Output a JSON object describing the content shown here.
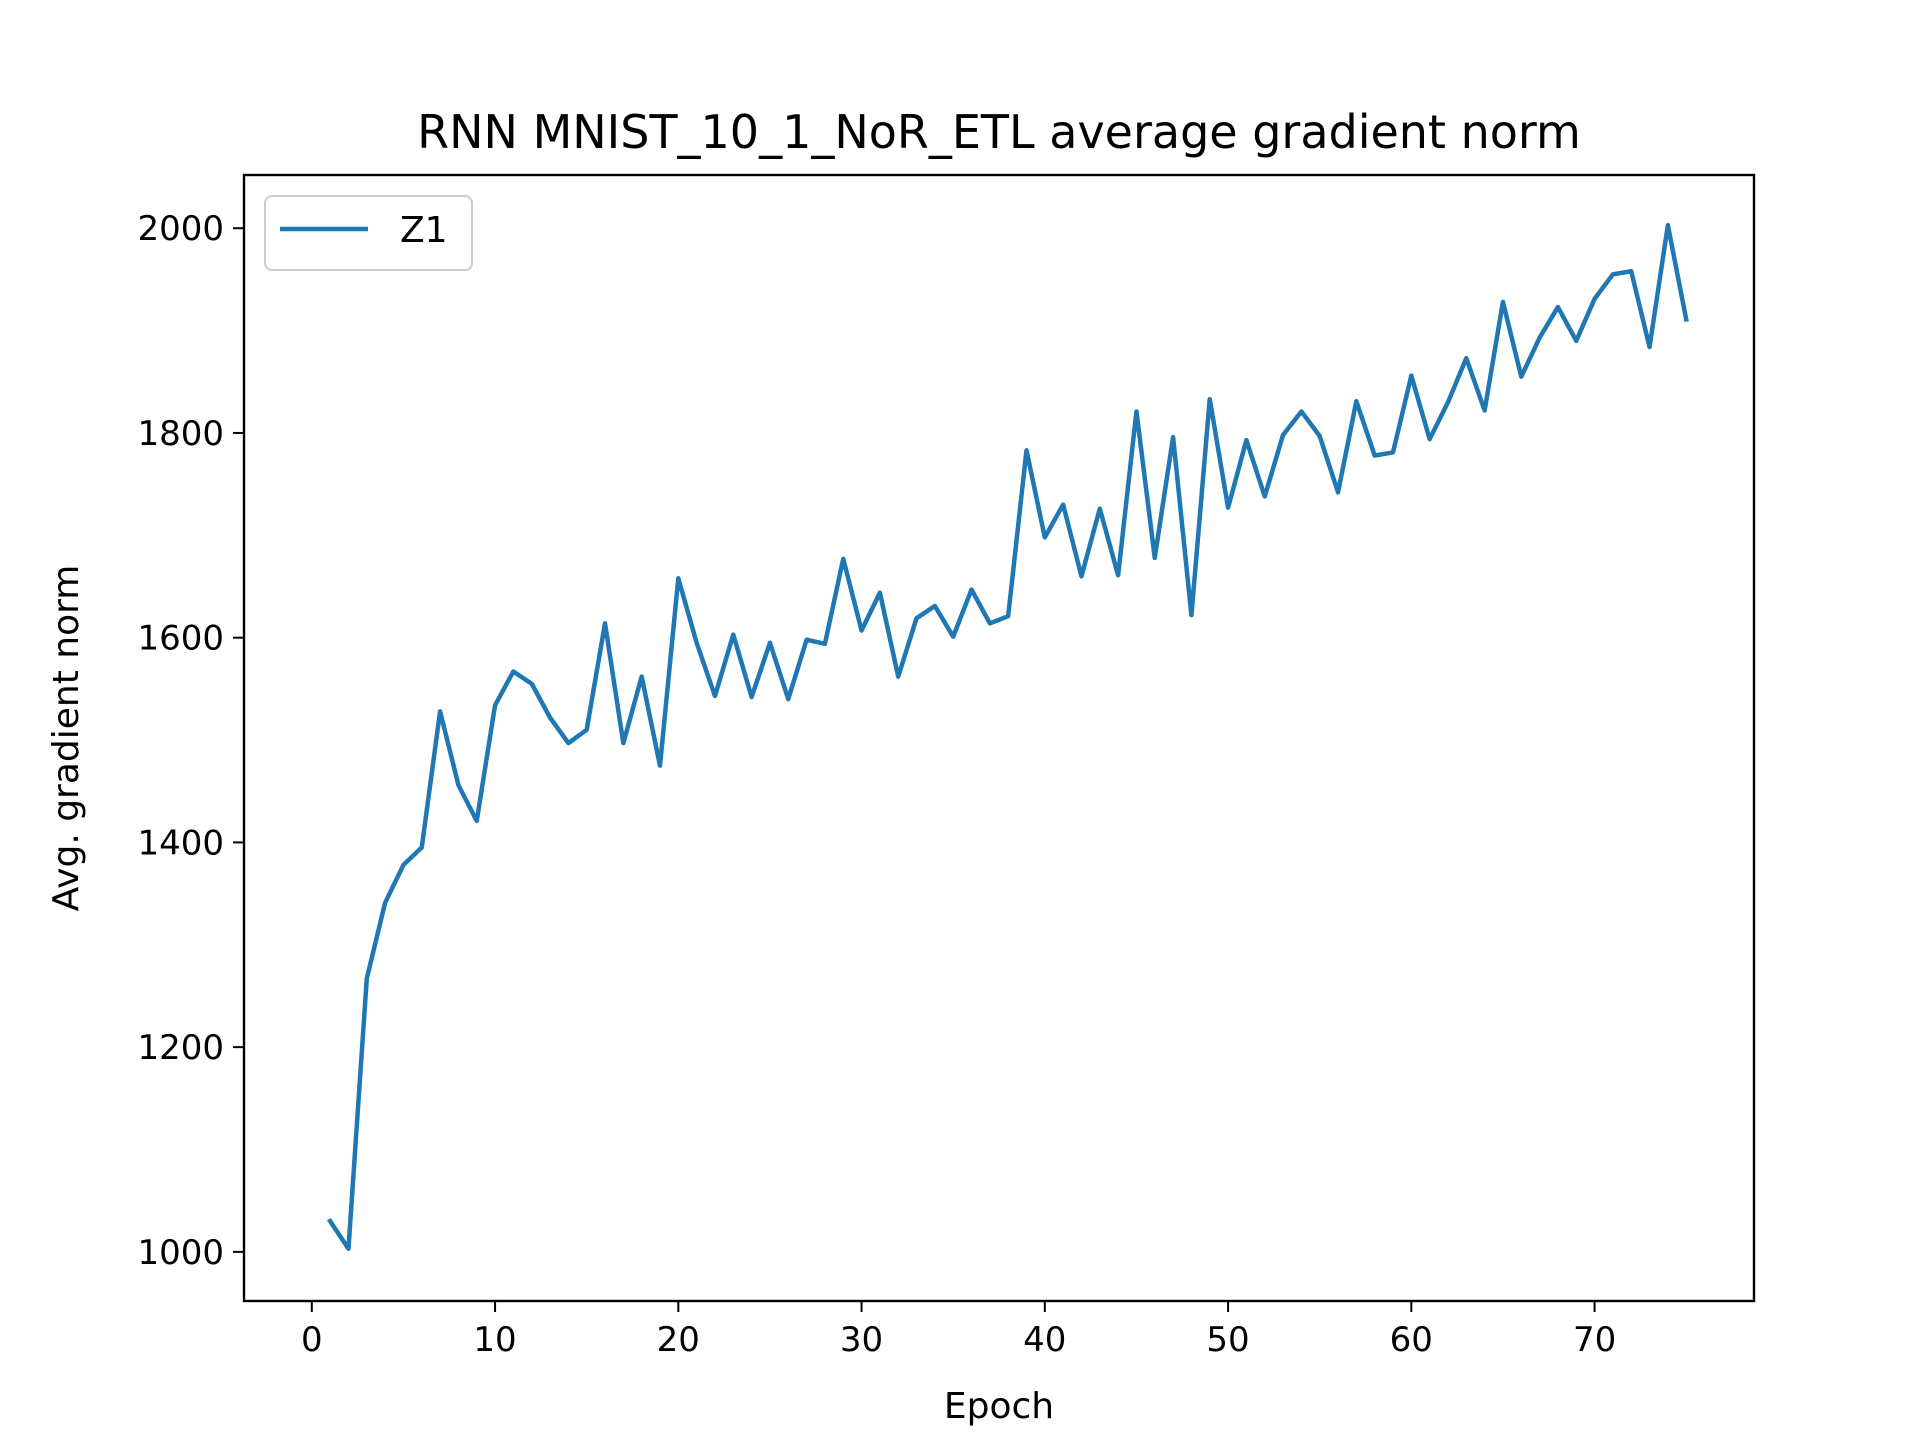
{
  "chart_data": {
    "type": "line",
    "title": "RNN MNIST_10_1_NoR_ETL average gradient norm",
    "xlabel": "Epoch",
    "ylabel": "Avg. gradient norm",
    "xlim": [
      -3.7,
      78.7
    ],
    "ylim": [
      952,
      2052
    ],
    "xticks": [
      0,
      10,
      20,
      30,
      40,
      50,
      60,
      70
    ],
    "yticks": [
      1000,
      1200,
      1400,
      1600,
      1800,
      2000
    ],
    "grid": false,
    "legend_position": "top-left",
    "series": [
      {
        "name": "Z1",
        "color": "#1f77b4",
        "x": [
          1,
          2,
          3,
          4,
          5,
          6,
          7,
          8,
          9,
          10,
          11,
          12,
          13,
          14,
          15,
          16,
          17,
          18,
          19,
          20,
          21,
          22,
          23,
          24,
          25,
          26,
          27,
          28,
          29,
          30,
          31,
          32,
          33,
          34,
          35,
          36,
          37,
          38,
          39,
          40,
          41,
          42,
          43,
          44,
          45,
          46,
          47,
          48,
          49,
          50,
          51,
          52,
          53,
          54,
          55,
          56,
          57,
          58,
          59,
          60,
          61,
          62,
          63,
          64,
          65,
          66,
          67,
          68,
          69,
          70,
          71,
          72,
          73,
          74,
          75
        ],
        "values": [
          1030,
          1003,
          1267,
          1341,
          1378,
          1395,
          1528,
          1456,
          1421,
          1534,
          1567,
          1555,
          1522,
          1497,
          1510,
          1614,
          1497,
          1562,
          1475,
          1658,
          1595,
          1543,
          1603,
          1542,
          1595,
          1540,
          1598,
          1594,
          1677,
          1607,
          1644,
          1562,
          1619,
          1631,
          1601,
          1647,
          1614,
          1621,
          1783,
          1698,
          1730,
          1660,
          1726,
          1661,
          1821,
          1678,
          1796,
          1622,
          1833,
          1727,
          1793,
          1738,
          1798,
          1821,
          1797,
          1742,
          1831,
          1778,
          1781,
          1856,
          1794,
          1830,
          1873,
          1822,
          1928,
          1855,
          1893,
          1923,
          1890,
          1931,
          1955,
          1958,
          1884,
          2003,
          1911
        ]
      }
    ]
  }
}
